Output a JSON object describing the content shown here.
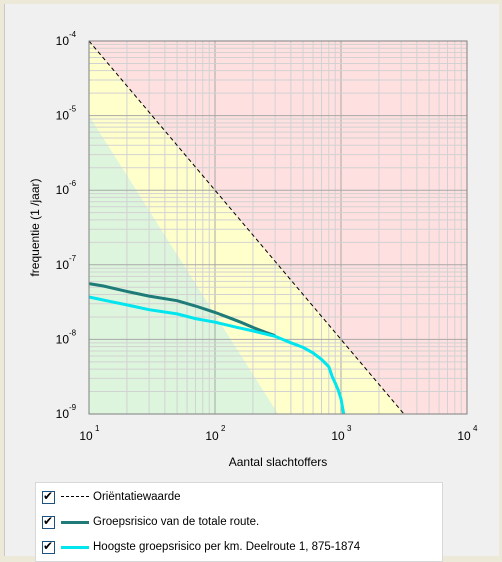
{
  "chart_data": {
    "type": "line",
    "xlabel": "Aantal slachtoffers",
    "ylabel": "frequentie (1 /jaar)",
    "xscale": "log",
    "yscale": "log",
    "xlim": [
      10,
      10000
    ],
    "ylim": [
      1e-09,
      0.0001
    ],
    "x_ticks": [
      {
        "base": "10",
        "exp": "1",
        "value": 10
      },
      {
        "base": "10",
        "exp": "2",
        "value": 100
      },
      {
        "base": "10",
        "exp": "3",
        "value": 1000
      },
      {
        "base": "10",
        "exp": "4",
        "value": 10000
      }
    ],
    "y_ticks": [
      {
        "base": "10",
        "exp": "-4",
        "value": 0.0001
      },
      {
        "base": "10",
        "exp": "-5",
        "value": 1e-05
      },
      {
        "base": "10",
        "exp": "-6",
        "value": 1e-06
      },
      {
        "base": "10",
        "exp": "-7",
        "value": 1e-07
      },
      {
        "base": "10",
        "exp": "-8",
        "value": 1e-08
      },
      {
        "base": "10",
        "exp": "-9",
        "value": 1e-09
      }
    ],
    "grid": true,
    "background_zones": [
      {
        "color": "#ffe0e0"
      },
      {
        "color": "#ffffcc"
      },
      {
        "color": "#ddf5dd"
      }
    ],
    "series": [
      {
        "name": "Oriëntatiewaarde",
        "style": "dashed",
        "color": "#000000",
        "x": [
          10,
          3162
        ],
        "y": [
          0.0001,
          1e-09
        ]
      },
      {
        "name": "Groepsrisico van de totale route.",
        "style": "solid",
        "color": "#1e7b78",
        "x": [
          10,
          13,
          20,
          30,
          50,
          70,
          100,
          130,
          160,
          200,
          250,
          300
        ],
        "y": [
          5.6e-08,
          5.2e-08,
          4.4e-08,
          3.8e-08,
          3.3e-08,
          2.8e-08,
          2.3e-08,
          1.95e-08,
          1.7e-08,
          1.45e-08,
          1.25e-08,
          1.12e-08
        ]
      },
      {
        "name": "Hoogste groepsrisico per km. Deelroute 1, 875-1874",
        "style": "solid",
        "color": "#00e5ee",
        "x": [
          10,
          15,
          20,
          30,
          50,
          70,
          100,
          150,
          200,
          300,
          400,
          500,
          600,
          700,
          800,
          850,
          900,
          950,
          1000,
          1050
        ],
        "y": [
          3.7e-08,
          3.2e-08,
          2.9e-08,
          2.5e-08,
          2.2e-08,
          1.9e-08,
          1.7e-08,
          1.45e-08,
          1.3e-08,
          1.1e-08,
          9e-09,
          7.8e-09,
          6.6e-09,
          5.4e-09,
          4.3e-09,
          3.2e-09,
          2.6e-09,
          2.1e-09,
          1.6e-09,
          1e-09
        ]
      }
    ]
  },
  "legend": {
    "items": [
      {
        "label": "Oriëntatiewaarde",
        "checked": true
      },
      {
        "label": "Groepsrisico van de totale route.",
        "checked": true
      },
      {
        "label": "Hoogste groepsrisico per km. Deelroute 1, 875-1874",
        "checked": true
      }
    ],
    "check_glyph": "✔"
  }
}
